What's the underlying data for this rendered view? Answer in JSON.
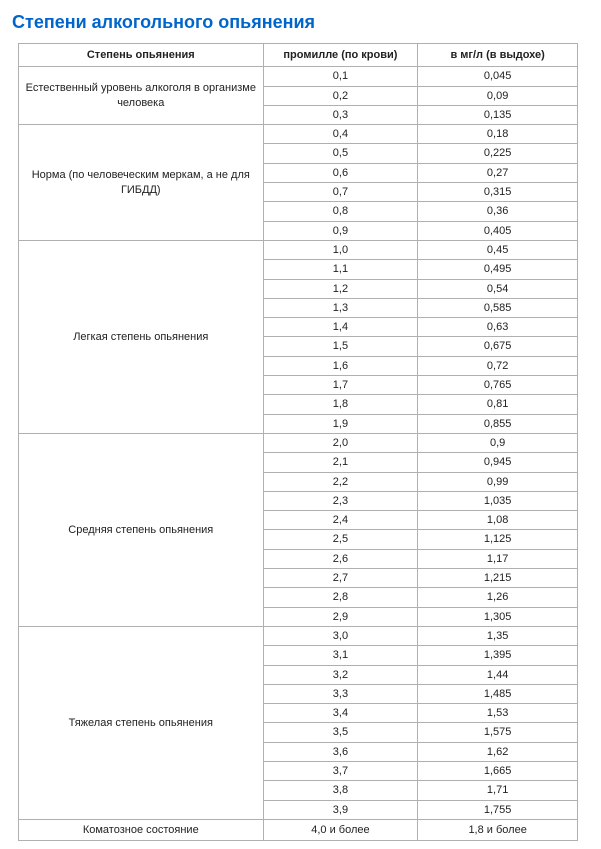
{
  "title": "Степени алкогольного опьянения",
  "columns": {
    "level": "Степень опьянения",
    "blood": "промилле (по крови)",
    "breath": "в мг/л (в выдохе)"
  },
  "groups": [
    {
      "label": "Естественный уровень алкоголя в организме человека",
      "rows": [
        {
          "b": "0,1",
          "a": "0,045"
        },
        {
          "b": "0,2",
          "a": "0,09"
        },
        {
          "b": "0,3",
          "a": "0,135"
        }
      ]
    },
    {
      "label": "Норма (по человеческим меркам, а не для ГИБДД)",
      "rows": [
        {
          "b": "0,4",
          "a": "0,18"
        },
        {
          "b": "0,5",
          "a": "0,225"
        },
        {
          "b": "0,6",
          "a": "0,27"
        },
        {
          "b": "0,7",
          "a": "0,315"
        },
        {
          "b": "0,8",
          "a": "0,36"
        },
        {
          "b": "0,9",
          "a": "0,405"
        }
      ]
    },
    {
      "label": "Легкая степень опьянения",
      "rows": [
        {
          "b": "1,0",
          "a": "0,45"
        },
        {
          "b": "1,1",
          "a": "0,495"
        },
        {
          "b": "1,2",
          "a": "0,54"
        },
        {
          "b": "1,3",
          "a": "0,585"
        },
        {
          "b": "1,4",
          "a": "0,63"
        },
        {
          "b": "1,5",
          "a": "0,675"
        },
        {
          "b": "1,6",
          "a": "0,72"
        },
        {
          "b": "1,7",
          "a": "0,765"
        },
        {
          "b": "1,8",
          "a": "0,81"
        },
        {
          "b": "1,9",
          "a": "0,855"
        }
      ]
    },
    {
      "label": "Средняя степень опьянения",
      "rows": [
        {
          "b": "2,0",
          "a": "0,9"
        },
        {
          "b": "2,1",
          "a": "0,945"
        },
        {
          "b": "2,2",
          "a": "0,99"
        },
        {
          "b": "2,3",
          "a": "1,035"
        },
        {
          "b": "2,4",
          "a": "1,08"
        },
        {
          "b": "2,5",
          "a": "1,125"
        },
        {
          "b": "2,6",
          "a": "1,17"
        },
        {
          "b": "2,7",
          "a": "1,215"
        },
        {
          "b": "2,8",
          "a": "1,26"
        },
        {
          "b": "2,9",
          "a": "1,305"
        }
      ]
    },
    {
      "label": "Тяжелая степень опьянения",
      "rows": [
        {
          "b": "3,0",
          "a": "1,35"
        },
        {
          "b": "3,1",
          "a": "1,395"
        },
        {
          "b": "3,2",
          "a": "1,44"
        },
        {
          "b": "3,3",
          "a": "1,485"
        },
        {
          "b": "3,4",
          "a": "1,53"
        },
        {
          "b": "3,5",
          "a": "1,575"
        },
        {
          "b": "3,6",
          "a": "1,62"
        },
        {
          "b": "3,7",
          "a": "1,665"
        },
        {
          "b": "3,8",
          "a": "1,71"
        },
        {
          "b": "3,9",
          "a": "1,755"
        }
      ]
    },
    {
      "label": "Коматозное состояние",
      "rows": [
        {
          "b": "4,0 и более",
          "a": "1,8 и более"
        }
      ]
    }
  ]
}
